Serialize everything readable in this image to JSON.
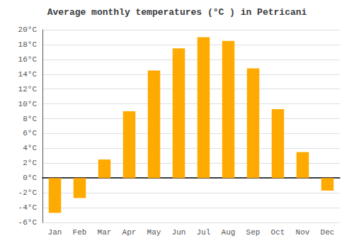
{
  "chart_data": {
    "type": "bar",
    "title": "Average monthly temperatures (°C ) in Petricani",
    "categories": [
      "Jan",
      "Feb",
      "Mar",
      "Apr",
      "May",
      "Jun",
      "Jul",
      "Aug",
      "Sep",
      "Oct",
      "Nov",
      "Dec"
    ],
    "values": [
      -4.7,
      -2.7,
      2.5,
      9.0,
      14.5,
      17.5,
      19.0,
      18.5,
      14.8,
      9.3,
      3.5,
      -1.7
    ],
    "color": "#FFAA00",
    "ylim": [
      -6,
      20
    ],
    "yticks": [
      {
        "value": -6,
        "label": "-6°C"
      },
      {
        "value": -4,
        "label": "-4°C"
      },
      {
        "value": -2,
        "label": "-2°C"
      },
      {
        "value": 0,
        "label": "0°C"
      },
      {
        "value": 2,
        "label": "2°C"
      },
      {
        "value": 4,
        "label": "4°C"
      },
      {
        "value": 6,
        "label": "6°C"
      },
      {
        "value": 8,
        "label": "8°C"
      },
      {
        "value": 10,
        "label": "10°C"
      },
      {
        "value": 12,
        "label": "12°C"
      },
      {
        "value": 14,
        "label": "14°C"
      },
      {
        "value": 16,
        "label": "16°C"
      },
      {
        "value": 18,
        "label": "18°C"
      },
      {
        "value": 20,
        "label": "20°C"
      }
    ],
    "grid": true
  }
}
